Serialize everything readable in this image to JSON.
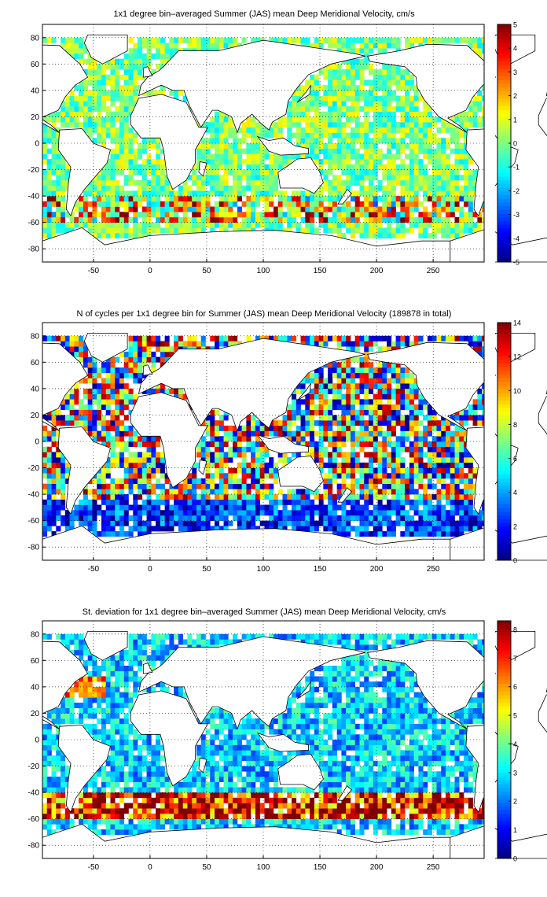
{
  "chart_data": [
    {
      "type": "heatmap",
      "title": "1x1 degree bin–averaged Summer (JAS) mean Deep Meridional Velocity, cm/s",
      "xlim": [
        -95,
        295
      ],
      "ylim": [
        -90,
        90
      ],
      "xticks": [
        -50,
        0,
        50,
        100,
        150,
        200,
        250
      ],
      "yticks": [
        80,
        60,
        40,
        20,
        0,
        -20,
        -40,
        -60,
        -80
      ],
      "grid": true,
      "colormap": "jet",
      "clim": [
        -5,
        5
      ],
      "colorbar_ticks": [
        5,
        4,
        3,
        2,
        1,
        0,
        -1,
        -2,
        -3,
        -4,
        -5
      ],
      "field": "mean_velocity"
    },
    {
      "type": "heatmap",
      "title": "N of cycles per 1x1 degree bin for Summer (JAS) mean Deep Meridional Velocity (189878 in total)",
      "xlim": [
        -95,
        295
      ],
      "ylim": [
        -90,
        90
      ],
      "xticks": [
        -50,
        0,
        50,
        100,
        150,
        200,
        250
      ],
      "yticks": [
        80,
        60,
        40,
        20,
        0,
        -20,
        -40,
        -60,
        -80
      ],
      "grid": true,
      "colormap": "jet",
      "clim": [
        0,
        14
      ],
      "colorbar_ticks": [
        14,
        12,
        10,
        8,
        6,
        4,
        2,
        0
      ],
      "field": "count"
    },
    {
      "type": "heatmap",
      "title": "St. deviation for 1x1 degree bin–averaged Summer (JAS) mean Deep Meridional Velocity, cm/s",
      "xlim": [
        -95,
        295
      ],
      "ylim": [
        -90,
        90
      ],
      "xticks": [
        -50,
        0,
        50,
        100,
        150,
        200,
        250
      ],
      "yticks": [
        80,
        60,
        40,
        20,
        0,
        -20,
        -40,
        -60,
        -80
      ],
      "grid": true,
      "colormap": "jet",
      "clim": [
        0,
        8.3
      ],
      "colorbar_ticks": [
        8,
        7,
        6,
        5,
        4,
        3,
        2,
        1,
        0
      ],
      "field": "std"
    }
  ]
}
